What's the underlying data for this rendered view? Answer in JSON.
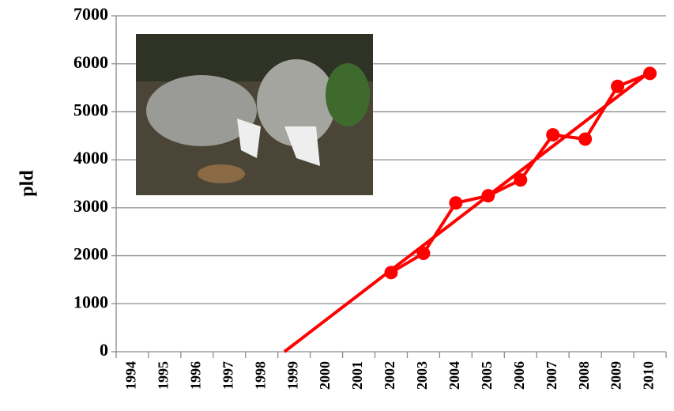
{
  "chart_data": {
    "type": "line",
    "y_label": "pld",
    "categories": [
      "1994",
      "1995",
      "1996",
      "1997",
      "1998",
      "1999",
      "2000",
      "2001",
      "2002",
      "2003",
      "2004",
      "2005",
      "2006",
      "2007",
      "2008",
      "2009",
      "2010"
    ],
    "series": [
      {
        "color": "#ff0000",
        "values": [
          null,
          null,
          null,
          null,
          null,
          null,
          null,
          null,
          1650,
          2050,
          3100,
          3250,
          3580,
          4520,
          4430,
          5530,
          5800
        ]
      }
    ],
    "ylim": [
      0,
      7000
    ],
    "yticks": [
      0,
      1000,
      2000,
      3000,
      4000,
      5000,
      6000,
      7000
    ],
    "grid": true,
    "trendline": true
  }
}
